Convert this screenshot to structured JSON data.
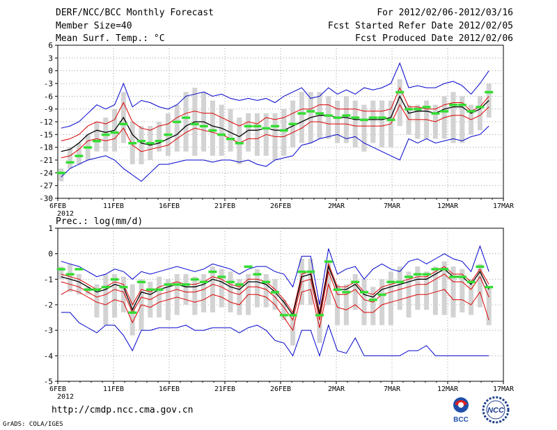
{
  "header": {
    "title": "DERF/NCC/BCC Monthly Forecast",
    "member_size": "Member Size=40",
    "variable": "Mean Surf. Temp.: °C",
    "for_range": "For 2012/02/06-2012/03/16",
    "started": "Fcst Started Refer Date 2012/02/05",
    "produced": "Fcst Produced Date 2012/02/06"
  },
  "footer": {
    "url": "http://cmdp.ncc.cma.gov.cn",
    "grads": "GrADS: COLA/IGES",
    "logo_bcc": "BCC",
    "logo_ncc": "NCC"
  },
  "colors": {
    "envelope": "#0000cc",
    "spread": "#dd0000",
    "mean": "#000000",
    "observed": "#33dd33",
    "bar": "#d3d3d3",
    "grid": "#888888"
  },
  "chart_data": [
    {
      "type": "line",
      "title": "Mean Surf. Temp.: °C",
      "x_tick_labels": [
        "6FEB",
        "11FEB",
        "16FEB",
        "21FEB",
        "26FEB",
        "2MAR",
        "7MAR",
        "12MAR",
        "17MAR"
      ],
      "x_year_label": "2012",
      "y_tick_labels": [
        "6",
        "3",
        "0",
        "-3",
        "-6",
        "-9",
        "-12",
        "-15",
        "-18",
        "-21",
        "-24",
        "-27",
        "-30"
      ],
      "ylim": [
        -30,
        6
      ],
      "days": 40,
      "series": [
        {
          "name": "max",
          "values": [
            -13.5,
            -13,
            -12,
            -10,
            -8,
            -9,
            -8,
            -3,
            -8.5,
            -7,
            -7.5,
            -8.5,
            -9,
            -8,
            -6,
            -5.5,
            -5,
            -6,
            -5.5,
            -6.5,
            -7,
            -6.5,
            -7,
            -6.5,
            -7.5,
            -6,
            -5,
            -4,
            -6.5,
            -6,
            -4,
            -5.5,
            -4.5,
            -5.5,
            -4,
            -4.5,
            -4,
            -3,
            1.8,
            -4,
            -3.5,
            -4,
            -4,
            -3,
            -2.5,
            -3.5,
            -5.5,
            -3,
            0
          ]
        },
        {
          "name": "q_high",
          "values": [
            -16.5,
            -16,
            -15,
            -13,
            -12,
            -12.5,
            -11.5,
            -7.5,
            -12,
            -13.5,
            -14,
            -13,
            -12.5,
            -11,
            -10,
            -9.5,
            -10,
            -10,
            -11,
            -12,
            -13,
            -12,
            -12.5,
            -11,
            -11.5,
            -11,
            -10,
            -9,
            -9,
            -8,
            -8,
            -9,
            -9,
            -9,
            -9.5,
            -9.5,
            -9.5,
            -9,
            -4,
            -8.5,
            -8.5,
            -9,
            -9,
            -8,
            -7.5,
            -7.5,
            -9.5,
            -8.5,
            -6
          ]
        },
        {
          "name": "mean",
          "values": [
            -19,
            -18.5,
            -17,
            -15,
            -14,
            -14.5,
            -14,
            -11,
            -15,
            -17,
            -17.5,
            -17,
            -16,
            -15,
            -13,
            -12,
            -12,
            -13,
            -13.5,
            -14.5,
            -15.5,
            -14,
            -14,
            -13.5,
            -14,
            -14,
            -13,
            -12,
            -11,
            -10.5,
            -10.5,
            -11,
            -11,
            -11.5,
            -11.5,
            -11.5,
            -11.5,
            -11,
            -6,
            -10,
            -9.5,
            -9.5,
            -10,
            -9,
            -8.5,
            -8.5,
            -10,
            -9,
            -7
          ]
        },
        {
          "name": "q_low",
          "values": [
            -20.5,
            -20,
            -18.5,
            -16.5,
            -16,
            -16.5,
            -16,
            -13.5,
            -17.5,
            -19,
            -18.5,
            -18,
            -17.5,
            -16,
            -14.5,
            -13.5,
            -14,
            -14.5,
            -15,
            -16,
            -17,
            -16,
            -16,
            -15,
            -15.5,
            -15.5,
            -14.5,
            -13.5,
            -12,
            -12,
            -12.5,
            -12.5,
            -12.5,
            -13,
            -13,
            -13,
            -13,
            -12.5,
            -8,
            -11.5,
            -11.5,
            -11.5,
            -12,
            -11,
            -10.5,
            -10.5,
            -11.5,
            -10.5,
            -8.5
          ]
        },
        {
          "name": "min",
          "values": [
            -25,
            -23,
            -22,
            -21,
            -20.5,
            -20,
            -21,
            -23,
            -24.5,
            -26,
            -24,
            -22,
            -22,
            -21.5,
            -21,
            -21,
            -21,
            -21.5,
            -21,
            -21,
            -21.5,
            -21,
            -22,
            -22.5,
            -21,
            -20.5,
            -20,
            -17.5,
            -17,
            -16,
            -15.5,
            -15,
            -16,
            -15.5,
            -17,
            -18,
            -19,
            -20,
            -21,
            -16,
            -17,
            -16,
            -17,
            -16.5,
            -16,
            -16.5,
            -15.5,
            -15,
            -13
          ]
        }
      ],
      "observed": [
        -24,
        -21.5,
        -20,
        -18,
        -16.5,
        -15,
        -14.5,
        -12.5,
        -17,
        -16.5,
        -17,
        -16.5,
        -15,
        -12,
        -11,
        -12.5,
        -13,
        -14,
        -15,
        -16,
        -17,
        -13,
        -13,
        -13.5,
        -13,
        -14,
        -12.5,
        -10,
        -9.5,
        -10,
        -10.5,
        -11,
        -10.5,
        -11,
        -11.5,
        -11,
        -11,
        -11.5,
        -5,
        -9,
        -9,
        -8.5,
        -10,
        -9.5,
        -8,
        -8,
        -9.5,
        -8.5,
        -5
      ],
      "bars": [
        [
          -26,
          -23
        ],
        [
          -23,
          -18
        ],
        [
          -22,
          -17
        ],
        [
          -21,
          -15
        ],
        [
          -19,
          -12
        ],
        [
          -19,
          -11
        ],
        [
          -19,
          -9
        ],
        [
          -17,
          -5
        ],
        [
          -22,
          -12
        ],
        [
          -22,
          -13
        ],
        [
          -21,
          -13
        ],
        [
          -19,
          -12
        ],
        [
          -20,
          -10
        ],
        [
          -19,
          -8
        ],
        [
          -19,
          -5
        ],
        [
          -20,
          -4
        ],
        [
          -19,
          -5
        ],
        [
          -20,
          -7
        ],
        [
          -20,
          -8
        ],
        [
          -19,
          -9
        ],
        [
          -22,
          -11
        ],
        [
          -19,
          -10
        ],
        [
          -20,
          -10
        ],
        [
          -20,
          -10
        ],
        [
          -21,
          -10
        ],
        [
          -20,
          -9
        ],
        [
          -18,
          -7
        ],
        [
          -17,
          -5
        ],
        [
          -17,
          -5
        ],
        [
          -16,
          -5
        ],
        [
          -16,
          -6
        ],
        [
          -17,
          -7
        ],
        [
          -17,
          -6
        ],
        [
          -18,
          -7
        ],
        [
          -19,
          -8
        ],
        [
          -17,
          -7
        ],
        [
          -18,
          -7
        ],
        [
          -18,
          -7
        ],
        [
          -13,
          -2
        ],
        [
          -15,
          -8
        ],
        [
          -16,
          -8
        ],
        [
          -16,
          -7
        ],
        [
          -16,
          -8
        ],
        [
          -16,
          -6
        ],
        [
          -17,
          -5
        ],
        [
          -17,
          -6
        ],
        [
          -15,
          -8
        ],
        [
          -14,
          -6
        ],
        [
          -11,
          -3
        ]
      ]
    },
    {
      "type": "line",
      "title": "Prec.: log(mm/d)",
      "x_tick_labels": [
        "6FEB",
        "11FEB",
        "16FEB",
        "21FEB",
        "26FEB",
        "2MAR",
        "7MAR",
        "12MAR",
        "17MAR"
      ],
      "x_year_label": "2012",
      "y_tick_labels": [
        "1",
        "0",
        "-1",
        "-2",
        "-3",
        "-4",
        "-5"
      ],
      "ylim": [
        -5,
        1
      ],
      "days": 40,
      "series": [
        {
          "name": "max",
          "values": [
            -0.3,
            -0.4,
            -0.5,
            -0.7,
            -0.9,
            -0.8,
            -0.6,
            -0.7,
            -1.0,
            -0.7,
            -0.8,
            -0.7,
            -0.6,
            -0.5,
            -0.6,
            -0.7,
            -0.6,
            -0.4,
            -0.5,
            -0.6,
            -0.8,
            -0.6,
            -0.5,
            -0.5,
            -0.7,
            -0.8,
            -1.3,
            -0.1,
            -0.1,
            -2.0,
            0.2,
            -0.8,
            -0.6,
            -0.5,
            -1.0,
            -0.6,
            -0.4,
            -0.6,
            -0.7,
            -0.3,
            -0.2,
            -0.4,
            -0.2,
            0.0,
            -0.2,
            -0.3,
            -0.7,
            0.3,
            -0.7
          ]
        },
        {
          "name": "q_high",
          "values": [
            -0.8,
            -0.9,
            -1.0,
            -1.2,
            -1.4,
            -1.3,
            -1.1,
            -1.2,
            -2.0,
            -1.4,
            -1.5,
            -1.3,
            -1.2,
            -1.1,
            -1.2,
            -1.2,
            -1.1,
            -0.9,
            -1.0,
            -1.2,
            -1.3,
            -1.0,
            -1.0,
            -1.1,
            -1.4,
            -1.8,
            -2.3,
            -0.8,
            -0.7,
            -2.3,
            -0.4,
            -1.3,
            -1.3,
            -1.1,
            -1.5,
            -1.6,
            -1.3,
            -1.2,
            -1.1,
            -1.0,
            -0.9,
            -0.9,
            -0.7,
            -0.5,
            -0.8,
            -0.8,
            -1.1,
            -0.6,
            -1.2
          ]
        },
        {
          "name": "mean",
          "values": [
            -0.9,
            -1.0,
            -1.1,
            -1.3,
            -1.5,
            -1.4,
            -1.2,
            -1.3,
            -2.2,
            -1.5,
            -1.6,
            -1.4,
            -1.3,
            -1.2,
            -1.3,
            -1.3,
            -1.2,
            -1.0,
            -1.1,
            -1.3,
            -1.4,
            -1.1,
            -1.1,
            -1.2,
            -1.5,
            -1.9,
            -2.4,
            -0.9,
            -0.8,
            -2.4,
            -0.5,
            -1.4,
            -1.4,
            -1.2,
            -1.6,
            -1.7,
            -1.4,
            -1.3,
            -1.2,
            -1.1,
            -1.0,
            -1.0,
            -0.8,
            -0.6,
            -0.9,
            -0.9,
            -1.2,
            -0.7,
            -1.4
          ]
        },
        {
          "name": "q_low",
          "values": [
            -1.1,
            -1.2,
            -1.3,
            -1.5,
            -1.7,
            -1.6,
            -1.4,
            -1.5,
            -2.3,
            -1.7,
            -1.8,
            -1.6,
            -1.5,
            -1.4,
            -1.5,
            -1.5,
            -1.4,
            -1.2,
            -1.3,
            -1.5,
            -1.6,
            -1.3,
            -1.3,
            -1.4,
            -1.7,
            -2.1,
            -2.6,
            -1.1,
            -1.0,
            -2.6,
            -0.7,
            -1.6,
            -1.6,
            -1.4,
            -1.8,
            -1.9,
            -1.6,
            -1.5,
            -1.4,
            -1.3,
            -1.2,
            -1.2,
            -1.0,
            -0.8,
            -1.1,
            -1.1,
            -1.4,
            -0.9,
            -1.7
          ]
        },
        {
          "name": "q_low2",
          "values": [
            -1.6,
            -1.4,
            -1.5,
            -1.7,
            -1.9,
            -2.0,
            -1.8,
            -1.9,
            -2.7,
            -2.0,
            -2.1,
            -1.9,
            -1.8,
            -1.7,
            -1.8,
            -1.9,
            -1.8,
            -1.6,
            -1.7,
            -1.9,
            -2.0,
            -1.6,
            -1.6,
            -1.7,
            -2.0,
            -2.5,
            -3.0,
            -1.5,
            -1.4,
            -2.9,
            -1.2,
            -2.1,
            -2.2,
            -2.0,
            -2.3,
            -2.3,
            -2.0,
            -1.9,
            -1.8,
            -1.7,
            -1.6,
            -1.6,
            -1.5,
            -1.4,
            -1.8,
            -1.8,
            -2.0,
            -1.5,
            -2.6
          ]
        },
        {
          "name": "min",
          "values": [
            -2.3,
            -2.3,
            -2.7,
            -2.9,
            -3.1,
            -2.8,
            -2.8,
            -3.2,
            -3.8,
            -3.0,
            -3.0,
            -2.9,
            -2.9,
            -2.9,
            -2.8,
            -3.0,
            -3.0,
            -2.9,
            -2.9,
            -2.9,
            -3.1,
            -2.9,
            -2.8,
            -3.0,
            -3.4,
            -3.5,
            -4.0,
            -3.0,
            -3.0,
            -4.0,
            -2.8,
            -3.8,
            -3.9,
            -3.3,
            -4.0,
            -4.0,
            -4.0,
            -4.0,
            -4.0,
            -3.8,
            -3.8,
            -3.6,
            -4.0,
            -4.0,
            -4.0,
            -4.0,
            -4.0,
            -4.0,
            -4.0
          ]
        }
      ],
      "observed": [
        -0.6,
        -0.8,
        -0.6,
        -1.4,
        -1.4,
        -1.3,
        -1.0,
        -1.3,
        -2.3,
        -1.1,
        -1.4,
        -1.4,
        -1.2,
        -1.2,
        -1.2,
        -1.0,
        -1.1,
        -0.7,
        -0.9,
        -1.1,
        -1.2,
        -0.5,
        -0.8,
        -1.1,
        -1.5,
        -2.4,
        -2.4,
        -0.7,
        -0.7,
        -2.4,
        -0.3,
        -1.4,
        -1.5,
        -1.1,
        -1.5,
        -1.8,
        -1.6,
        -1.1,
        -1.1,
        -0.9,
        -0.8,
        -0.8,
        -0.6,
        -0.6,
        -0.9,
        -0.9,
        -1.1,
        -0.5,
        -1.3
      ],
      "bars": [
        [
          -1.0,
          -0.5
        ],
        [
          -1.5,
          -0.4
        ],
        [
          -1.6,
          -0.8
        ],
        [
          -1.6,
          -1.3
        ],
        [
          -2.5,
          -1.2
        ],
        [
          -2.8,
          -0.8
        ],
        [
          -2.5,
          -0.8
        ],
        [
          -2.3,
          -0.9
        ],
        [
          -3.2,
          -1.2
        ],
        [
          -3.0,
          -1.0
        ],
        [
          -2.5,
          -1.1
        ],
        [
          -2.5,
          -0.9
        ],
        [
          -2.6,
          -1.0
        ],
        [
          -2.4,
          -0.8
        ],
        [
          -2.0,
          -0.8
        ],
        [
          -2.4,
          -0.9
        ],
        [
          -2.3,
          -0.8
        ],
        [
          -2.3,
          -0.5
        ],
        [
          -2.1,
          -0.6
        ],
        [
          -2.3,
          -0.7
        ],
        [
          -2.4,
          -1.0
        ],
        [
          -2.4,
          -0.8
        ],
        [
          -2.1,
          -0.6
        ],
        [
          -2.1,
          -0.8
        ],
        [
          -2.2,
          -1.0
        ],
        [
          -2.6,
          -1.8
        ],
        [
          -3.6,
          -2.3
        ],
        [
          -2.0,
          -0.2
        ],
        [
          -2.0,
          -0.2
        ],
        [
          -3.5,
          -1.8
        ],
        [
          -2.0,
          -0.3
        ],
        [
          -2.8,
          -1.2
        ],
        [
          -2.8,
          -1.2
        ],
        [
          -2.2,
          -0.8
        ],
        [
          -2.8,
          -1.0
        ],
        [
          -2.8,
          -1.3
        ],
        [
          -2.8,
          -1.0
        ],
        [
          -2.8,
          -0.7
        ],
        [
          -2.2,
          -0.5
        ],
        [
          -2.5,
          -0.7
        ],
        [
          -2.2,
          -0.5
        ],
        [
          -2.2,
          -0.7
        ],
        [
          -2.4,
          -0.5
        ],
        [
          -2.4,
          -0.3
        ],
        [
          -2.5,
          -0.5
        ],
        [
          -2.3,
          -0.6
        ],
        [
          -2.4,
          -1.0
        ],
        [
          -2.1,
          -0.4
        ],
        [
          -2.8,
          -1.3
        ]
      ]
    }
  ]
}
